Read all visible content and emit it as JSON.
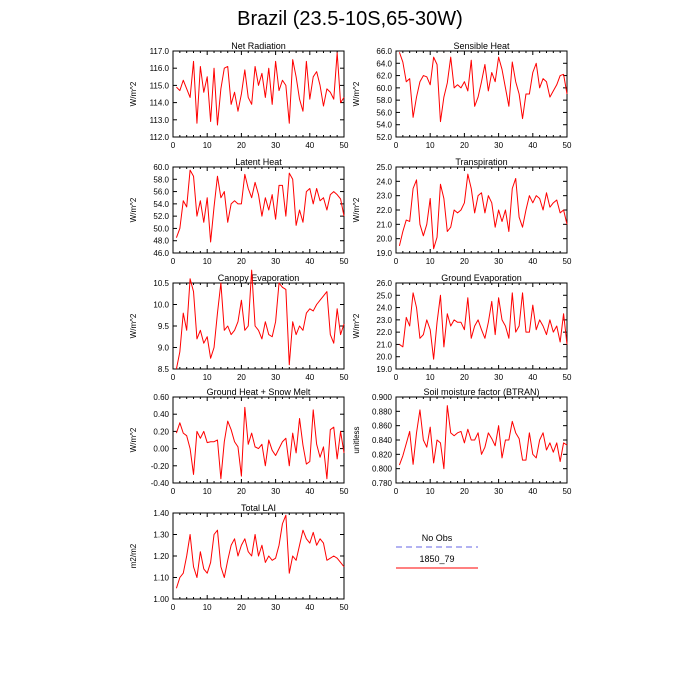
{
  "page": {
    "title": "Brazil (23.5-10S,65-30W)"
  },
  "legend": {
    "entries": [
      {
        "label": "No Obs",
        "color": "#9999ee",
        "dashed": true
      },
      {
        "label": "1850_79",
        "color": "#ff0000",
        "dashed": false
      }
    ]
  },
  "chart_data": [
    {
      "type": "line",
      "title": "Net Radiation",
      "ylabel": "W/m^2",
      "xlim": [
        0,
        50
      ],
      "ylim": [
        112,
        117
      ],
      "xticks": [
        0,
        10,
        20,
        30,
        40,
        50
      ],
      "yticks": [
        112,
        113,
        114,
        115,
        116,
        117
      ],
      "yticklabels": [
        "112.0",
        "113.0",
        "114.0",
        "115.0",
        "116.0",
        "117.0"
      ],
      "series": [
        {
          "color": "#ff0000",
          "x_start": 1,
          "values": [
            114.9,
            114.7,
            115.3,
            114.8,
            114.3,
            116.4,
            112.8,
            116.1,
            114.6,
            115.5,
            112.9,
            116.0,
            112.7,
            114.8,
            116.0,
            116.1,
            113.9,
            114.6,
            113.5,
            114.5,
            115.9,
            114.3,
            113.9,
            116.1,
            115.0,
            115.7,
            114.3,
            116.0,
            113.9,
            116.4,
            114.7,
            115.3,
            115.0,
            112.8,
            116.5,
            115.5,
            114.2,
            113.5,
            116.4,
            114.2,
            115.5,
            115.8,
            115.0,
            113.8,
            114.8,
            114.6,
            114.2,
            116.9,
            114.0,
            114.3
          ]
        }
      ]
    },
    {
      "type": "line",
      "title": "Sensible Heat",
      "ylabel": "W/m^2",
      "xlim": [
        0,
        50
      ],
      "ylim": [
        52,
        66
      ],
      "xticks": [
        0,
        10,
        20,
        30,
        40,
        50
      ],
      "yticks": [
        52,
        54,
        56,
        58,
        60,
        62,
        64,
        66
      ],
      "yticklabels": [
        "52.0",
        "54.0",
        "56.0",
        "58.0",
        "60.0",
        "62.0",
        "64.0",
        "66.0"
      ],
      "series": [
        {
          "color": "#ff0000",
          "x_start": 1,
          "values": [
            65.8,
            64.2,
            61.0,
            61.5,
            55.2,
            58.5,
            61.0,
            62.0,
            61.8,
            60.5,
            65.0,
            63.8,
            54.5,
            58.5,
            60.8,
            65.0,
            60.0,
            60.5,
            60.0,
            61.0,
            59.5,
            64.5,
            57.0,
            58.5,
            61.0,
            63.8,
            59.5,
            62.5,
            61.0,
            65.0,
            63.0,
            60.0,
            57.0,
            64.2,
            61.0,
            59.0,
            55.0,
            59.0,
            59.0,
            62.5,
            64.0,
            60.0,
            61.5,
            61.0,
            58.5,
            59.5,
            60.5,
            62.0,
            62.2,
            59.0
          ]
        }
      ]
    },
    {
      "type": "line",
      "title": "Latent Heat",
      "ylabel": "W/m^2",
      "xlim": [
        0,
        50
      ],
      "ylim": [
        46,
        60
      ],
      "xticks": [
        0,
        10,
        20,
        30,
        40,
        50
      ],
      "yticks": [
        46,
        48,
        50,
        52,
        54,
        56,
        58,
        60
      ],
      "yticklabels": [
        "46.0",
        "48.0",
        "50.0",
        "52.0",
        "54.0",
        "56.0",
        "58.0",
        "60.0"
      ],
      "series": [
        {
          "color": "#ff0000",
          "x_start": 1,
          "values": [
            48.5,
            50.0,
            54.5,
            53.5,
            59.5,
            58.5,
            52.0,
            54.5,
            51.0,
            55.0,
            47.8,
            53.5,
            58.5,
            55.0,
            56.0,
            51.0,
            54.0,
            54.5,
            54.0,
            54.0,
            58.8,
            56.5,
            55.0,
            57.5,
            55.5,
            52.0,
            55.0,
            53.0,
            55.5,
            51.5,
            57.0,
            57.0,
            52.0,
            59.0,
            58.0,
            50.5,
            53.0,
            51.0,
            56.0,
            56.5,
            54.0,
            56.5,
            54.5,
            55.0,
            53.0,
            55.5,
            56.0,
            55.5,
            54.8,
            52.0
          ]
        }
      ]
    },
    {
      "type": "line",
      "title": "Transpiration",
      "ylabel": "W/m^2",
      "xlim": [
        0,
        50
      ],
      "ylim": [
        19,
        25
      ],
      "xticks": [
        0,
        10,
        20,
        30,
        40,
        50
      ],
      "yticks": [
        19,
        20,
        21,
        22,
        23,
        24,
        25
      ],
      "yticklabels": [
        "19.0",
        "20.0",
        "21.0",
        "22.0",
        "23.0",
        "24.0",
        "25.0"
      ],
      "series": [
        {
          "color": "#ff0000",
          "x_start": 1,
          "values": [
            19.5,
            20.5,
            21.3,
            21.2,
            23.5,
            24.1,
            21.0,
            20.2,
            21.0,
            22.8,
            19.3,
            20.1,
            23.8,
            22.8,
            20.5,
            20.8,
            22.0,
            21.8,
            22.0,
            22.5,
            24.5,
            23.5,
            21.8,
            23.0,
            23.2,
            21.8,
            23.0,
            22.5,
            20.8,
            22.0,
            21.2,
            22.0,
            20.5,
            23.5,
            24.2,
            21.5,
            20.8,
            22.0,
            23.0,
            22.5,
            23.0,
            22.8,
            22.0,
            23.2,
            22.2,
            22.5,
            22.7,
            21.8,
            22.0,
            21.0
          ]
        }
      ]
    },
    {
      "type": "line",
      "title": "Canopy Evaporation",
      "ylabel": "W/m^2",
      "xlim": [
        0,
        50
      ],
      "ylim": [
        8.5,
        10.5
      ],
      "xticks": [
        0,
        10,
        20,
        30,
        40,
        50
      ],
      "yticks": [
        8.5,
        9.0,
        9.5,
        10.0,
        10.5
      ],
      "yticklabels": [
        "8.5",
        "9.0",
        "9.5",
        "10.0",
        "10.5"
      ],
      "series": [
        {
          "color": "#ff0000",
          "x_start": 1,
          "values": [
            8.5,
            8.9,
            9.8,
            9.4,
            10.6,
            10.3,
            9.2,
            9.4,
            9.1,
            9.25,
            8.75,
            9.0,
            9.8,
            10.5,
            9.4,
            9.5,
            9.3,
            9.4,
            9.6,
            10.1,
            9.4,
            9.5,
            10.8,
            9.5,
            9.4,
            9.2,
            9.6,
            9.3,
            9.25,
            9.6,
            10.5,
            10.4,
            10.35,
            8.6,
            9.6,
            9.3,
            9.5,
            9.4,
            9.8,
            9.9,
            9.85,
            10.0,
            10.1,
            10.2,
            10.3,
            9.3,
            9.1,
            9.9,
            9.3,
            9.55
          ]
        }
      ]
    },
    {
      "type": "line",
      "title": "Ground Evaporation",
      "ylabel": "W/m^2",
      "xlim": [
        0,
        50
      ],
      "ylim": [
        19,
        26
      ],
      "xticks": [
        0,
        10,
        20,
        30,
        40,
        50
      ],
      "yticks": [
        19,
        20,
        21,
        22,
        23,
        24,
        25,
        26
      ],
      "yticklabels": [
        "19.0",
        "20.0",
        "21.0",
        "22.0",
        "23.0",
        "24.0",
        "25.0",
        "26.0"
      ],
      "series": [
        {
          "color": "#ff0000",
          "x_start": 1,
          "values": [
            21.0,
            20.8,
            23.2,
            22.5,
            25.2,
            24.0,
            21.5,
            21.8,
            23.0,
            22.2,
            19.8,
            22.8,
            25.0,
            20.8,
            23.5,
            22.5,
            23.0,
            22.8,
            22.8,
            22.2,
            24.8,
            21.5,
            22.5,
            23.0,
            22.2,
            21.5,
            22.8,
            24.5,
            21.8,
            24.8,
            23.0,
            22.5,
            21.5,
            25.2,
            22.0,
            22.5,
            25.2,
            22.0,
            22.0,
            24.2,
            22.2,
            23.0,
            22.5,
            21.8,
            23.0,
            22.0,
            22.5,
            21.2,
            23.5,
            21.0
          ]
        }
      ]
    },
    {
      "type": "line",
      "title": "Ground Heat + Snow Melt",
      "ylabel": "W/m^2",
      "xlim": [
        0,
        50
      ],
      "ylim": [
        -0.4,
        0.6
      ],
      "xticks": [
        0,
        10,
        20,
        30,
        40,
        50
      ],
      "yticks": [
        -0.4,
        -0.2,
        0.0,
        0.2,
        0.4,
        0.6
      ],
      "yticklabels": [
        "-0.40",
        "-0.20",
        "0.00",
        "0.20",
        "0.40",
        "0.60"
      ],
      "series": [
        {
          "color": "#ff0000",
          "x_start": 1,
          "values": [
            0.18,
            0.3,
            0.18,
            0.15,
            0.0,
            -0.3,
            0.2,
            0.12,
            0.2,
            0.07,
            0.08,
            0.08,
            0.1,
            -0.35,
            0.08,
            0.32,
            0.22,
            0.08,
            0.02,
            -0.32,
            0.48,
            0.05,
            0.18,
            0.02,
            0.0,
            0.05,
            -0.2,
            0.1,
            -0.02,
            -0.08,
            0.0,
            0.08,
            0.12,
            -0.2,
            0.18,
            -0.05,
            0.35,
            0.04,
            -0.18,
            -0.15,
            0.45,
            0.05,
            -0.1,
            0.02,
            -0.35,
            0.22,
            0.25,
            -0.12,
            0.2,
            -0.05
          ]
        }
      ]
    },
    {
      "type": "line",
      "title": "Soil moisture factor (BTRAN)",
      "ylabel": "unitless",
      "xlim": [
        0,
        50
      ],
      "ylim": [
        0.78,
        0.9
      ],
      "xticks": [
        0,
        10,
        20,
        30,
        40,
        50
      ],
      "yticks": [
        0.78,
        0.8,
        0.82,
        0.84,
        0.86,
        0.88,
        0.9
      ],
      "yticklabels": [
        "0.780",
        "0.800",
        "0.820",
        "0.840",
        "0.860",
        "0.880",
        "0.900"
      ],
      "series": [
        {
          "color": "#ff0000",
          "x_start": 1,
          "values": [
            0.805,
            0.818,
            0.835,
            0.852,
            0.806,
            0.85,
            0.882,
            0.84,
            0.83,
            0.858,
            0.808,
            0.84,
            0.836,
            0.8,
            0.888,
            0.85,
            0.846,
            0.85,
            0.852,
            0.836,
            0.855,
            0.84,
            0.84,
            0.85,
            0.82,
            0.83,
            0.85,
            0.842,
            0.832,
            0.86,
            0.815,
            0.84,
            0.84,
            0.866,
            0.85,
            0.842,
            0.812,
            0.812,
            0.85,
            0.82,
            0.815,
            0.84,
            0.85,
            0.826,
            0.836,
            0.823,
            0.836,
            0.81,
            0.836,
            0.833
          ]
        }
      ]
    },
    {
      "type": "line",
      "title": "Total LAI",
      "ylabel": "m2/m2",
      "xlim": [
        0,
        50
      ],
      "ylim": [
        1.0,
        1.4
      ],
      "xticks": [
        0,
        10,
        20,
        30,
        40,
        50
      ],
      "yticks": [
        1.0,
        1.1,
        1.2,
        1.3,
        1.4
      ],
      "yticklabels": [
        "1.00",
        "1.10",
        "1.20",
        "1.30",
        "1.40"
      ],
      "series": [
        {
          "color": "#ff0000",
          "x_start": 1,
          "values": [
            1.05,
            1.1,
            1.12,
            1.2,
            1.3,
            1.15,
            1.1,
            1.22,
            1.14,
            1.12,
            1.17,
            1.3,
            1.32,
            1.15,
            1.1,
            1.18,
            1.25,
            1.28,
            1.2,
            1.25,
            1.28,
            1.22,
            1.2,
            1.3,
            1.2,
            1.25,
            1.17,
            1.2,
            1.18,
            1.19,
            1.25,
            1.35,
            1.39,
            1.12,
            1.2,
            1.18,
            1.25,
            1.32,
            1.28,
            1.26,
            1.31,
            1.25,
            1.28,
            1.26,
            1.18,
            1.19,
            1.2,
            1.19,
            1.17,
            1.15
          ]
        }
      ]
    }
  ]
}
